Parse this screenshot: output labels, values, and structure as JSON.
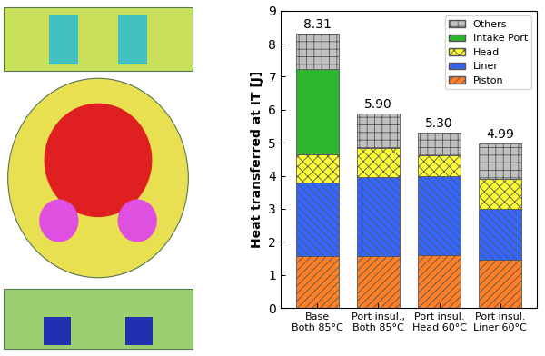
{
  "chart_data": {
    "type": "bar",
    "stacked": true,
    "ylabel": "Heat transferred at IT [J]",
    "categories": [
      "Base\nBoth 85°C",
      "Port insul.,\nBoth 85°C",
      "Port insul.\nHead 60°C",
      "Port insul.\nLiner 60°C"
    ],
    "series": [
      {
        "name": "Piston",
        "color": "#ff7f27",
        "values": [
          1.58,
          1.58,
          1.6,
          1.47
        ]
      },
      {
        "name": "Liner",
        "color": "#3366ff",
        "values": [
          2.22,
          2.37,
          2.4,
          1.53
        ]
      },
      {
        "name": "Head",
        "color": "#ffff33",
        "values": [
          0.85,
          0.88,
          0.63,
          0.9
        ]
      },
      {
        "name": "Intake Port",
        "color": "#2db52d",
        "values": [
          2.57,
          0,
          0,
          0
        ]
      },
      {
        "name": "Others",
        "color": "#c0c0c0",
        "values": [
          1.09,
          1.07,
          0.67,
          1.09
        ]
      }
    ],
    "totals": {
      "values": [
        8.31,
        5.9,
        5.3,
        4.99
      ],
      "labels": [
        "8.31",
        "5.90",
        "5.30",
        "4.99"
      ]
    },
    "ylim": [
      0,
      9
    ],
    "yticks": [
      0,
      1,
      2,
      3,
      4,
      5,
      6,
      7,
      8,
      9
    ],
    "legend": "upper right",
    "grid": false
  }
}
